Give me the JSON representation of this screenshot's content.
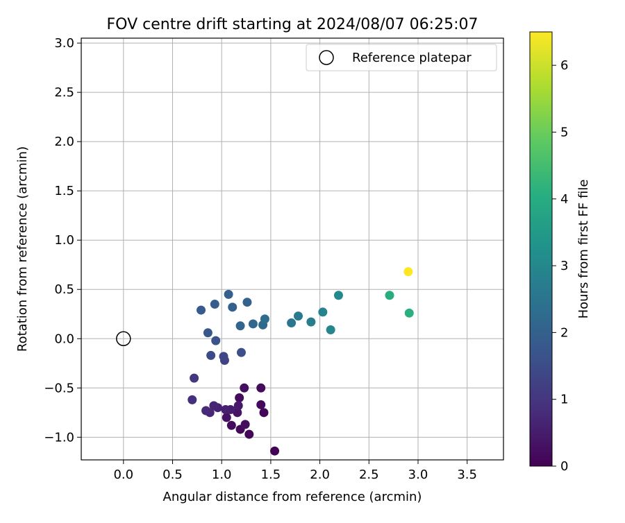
{
  "chart_data": {
    "type": "scatter",
    "title": "FOV centre drift starting at 2024/08/07 06:25:07",
    "xlabel": "Angular distance from reference (arcmin)",
    "ylabel": "Rotation from reference (arcmin)",
    "xlim": [
      -0.43,
      3.87
    ],
    "ylim": [
      -1.23,
      3.05
    ],
    "xticks": [
      0.0,
      0.5,
      1.0,
      1.5,
      2.0,
      2.5,
      3.0,
      3.5
    ],
    "xtick_labels": [
      "0.0",
      "0.5",
      "1.0",
      "1.5",
      "2.0",
      "2.5",
      "3.0",
      "3.5"
    ],
    "yticks": [
      -1.0,
      -0.5,
      0.0,
      0.5,
      1.0,
      1.5,
      2.0,
      2.5,
      3.0
    ],
    "ytick_labels": [
      "−1.0",
      "−0.5",
      "0.0",
      "0.5",
      "1.0",
      "1.5",
      "2.0",
      "2.5",
      "3.0"
    ],
    "grid": true,
    "legend": {
      "placement": "top-right",
      "entries": [
        "Reference platepar"
      ]
    },
    "reference_point": {
      "x": 0.0,
      "y": 0.0
    },
    "colorbar": {
      "label": "Hours from first FF file",
      "range": [
        0,
        6.5
      ],
      "ticks": [
        0,
        1,
        2,
        3,
        4,
        5,
        6
      ],
      "tick_labels": [
        "0",
        "1",
        "2",
        "3",
        "4",
        "5",
        "6"
      ],
      "colormap": "viridis"
    },
    "points": [
      {
        "x": 1.54,
        "y": -1.14,
        "c": 0.05
      },
      {
        "x": 1.28,
        "y": -0.97,
        "c": 0.1
      },
      {
        "x": 1.19,
        "y": -0.92,
        "c": 0.15
      },
      {
        "x": 1.1,
        "y": -0.88,
        "c": 0.2
      },
      {
        "x": 1.24,
        "y": -0.87,
        "c": 0.25
      },
      {
        "x": 1.05,
        "y": -0.8,
        "c": 0.3
      },
      {
        "x": 1.16,
        "y": -0.75,
        "c": 0.35
      },
      {
        "x": 1.43,
        "y": -0.75,
        "c": 0.1
      },
      {
        "x": 1.4,
        "y": -0.67,
        "c": 0.15
      },
      {
        "x": 1.18,
        "y": -0.6,
        "c": 0.2
      },
      {
        "x": 1.23,
        "y": -0.5,
        "c": 0.25
      },
      {
        "x": 1.4,
        "y": -0.5,
        "c": 0.2
      },
      {
        "x": 1.17,
        "y": -0.68,
        "c": 0.45
      },
      {
        "x": 1.09,
        "y": -0.72,
        "c": 0.5
      },
      {
        "x": 1.04,
        "y": -0.72,
        "c": 0.55
      },
      {
        "x": 0.96,
        "y": -0.7,
        "c": 0.6
      },
      {
        "x": 0.92,
        "y": -0.68,
        "c": 0.65
      },
      {
        "x": 0.88,
        "y": -0.75,
        "c": 0.7
      },
      {
        "x": 0.84,
        "y": -0.73,
        "c": 0.75
      },
      {
        "x": 0.7,
        "y": -0.62,
        "c": 0.85
      },
      {
        "x": 0.72,
        "y": -0.4,
        "c": 1.0
      },
      {
        "x": 1.03,
        "y": -0.22,
        "c": 1.25
      },
      {
        "x": 1.02,
        "y": -0.18,
        "c": 1.35
      },
      {
        "x": 0.89,
        "y": -0.17,
        "c": 1.45
      },
      {
        "x": 1.2,
        "y": -0.14,
        "c": 1.55
      },
      {
        "x": 0.94,
        "y": -0.02,
        "c": 1.65
      },
      {
        "x": 0.86,
        "y": 0.06,
        "c": 1.75
      },
      {
        "x": 0.79,
        "y": 0.29,
        "c": 1.85
      },
      {
        "x": 0.93,
        "y": 0.35,
        "c": 1.9
      },
      {
        "x": 1.07,
        "y": 0.45,
        "c": 1.95
      },
      {
        "x": 1.11,
        "y": 0.32,
        "c": 2.0
      },
      {
        "x": 1.26,
        "y": 0.37,
        "c": 2.05
      },
      {
        "x": 1.19,
        "y": 0.13,
        "c": 2.1
      },
      {
        "x": 1.32,
        "y": 0.15,
        "c": 2.15
      },
      {
        "x": 1.42,
        "y": 0.14,
        "c": 2.2
      },
      {
        "x": 1.44,
        "y": 0.2,
        "c": 2.3
      },
      {
        "x": 1.71,
        "y": 0.16,
        "c": 2.55
      },
      {
        "x": 1.78,
        "y": 0.23,
        "c": 2.65
      },
      {
        "x": 1.91,
        "y": 0.17,
        "c": 2.75
      },
      {
        "x": 2.03,
        "y": 0.27,
        "c": 2.85
      },
      {
        "x": 2.11,
        "y": 0.09,
        "c": 2.95
      },
      {
        "x": 2.19,
        "y": 0.44,
        "c": 3.05
      },
      {
        "x": 2.71,
        "y": 0.44,
        "c": 4.0
      },
      {
        "x": 2.91,
        "y": 0.26,
        "c": 4.1
      },
      {
        "x": 2.9,
        "y": 0.68,
        "c": 6.5
      }
    ]
  }
}
